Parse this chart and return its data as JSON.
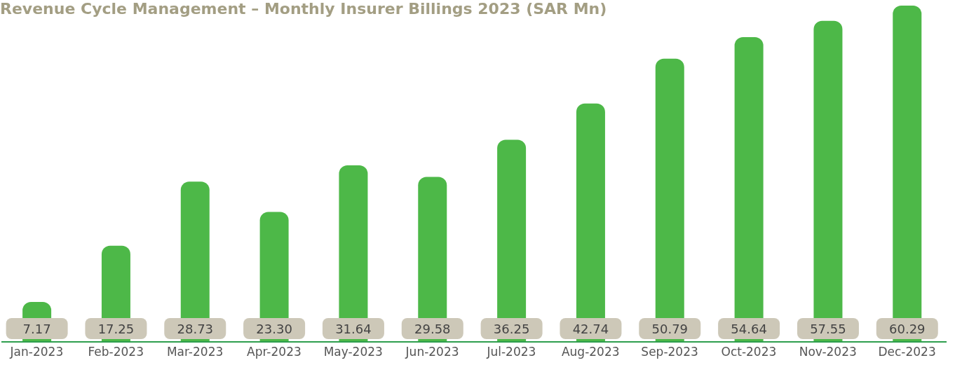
{
  "chart_data": {
    "type": "bar",
    "title": "Revenue Cycle Management – Monthly Insurer Billings 2023 (SAR Mn)",
    "categories": [
      "Jan-2023",
      "Feb-2023",
      "Mar-2023",
      "Apr-2023",
      "May-2023",
      "Jun-2023",
      "Jul-2023",
      "Aug-2023",
      "Sep-2023",
      "Oct-2023",
      "Nov-2023",
      "Dec-2023"
    ],
    "values": [
      7.17,
      17.25,
      28.73,
      23.3,
      31.64,
      29.58,
      36.25,
      42.74,
      50.79,
      54.64,
      57.55,
      60.29
    ],
    "value_labels": [
      "7.17",
      "17.25",
      "28.73",
      "23.30",
      "31.64",
      "29.58",
      "36.25",
      "42.74",
      "50.79",
      "54.64",
      "57.55",
      "60.29"
    ],
    "color": "#4db848",
    "grid": false,
    "legend": false
  }
}
